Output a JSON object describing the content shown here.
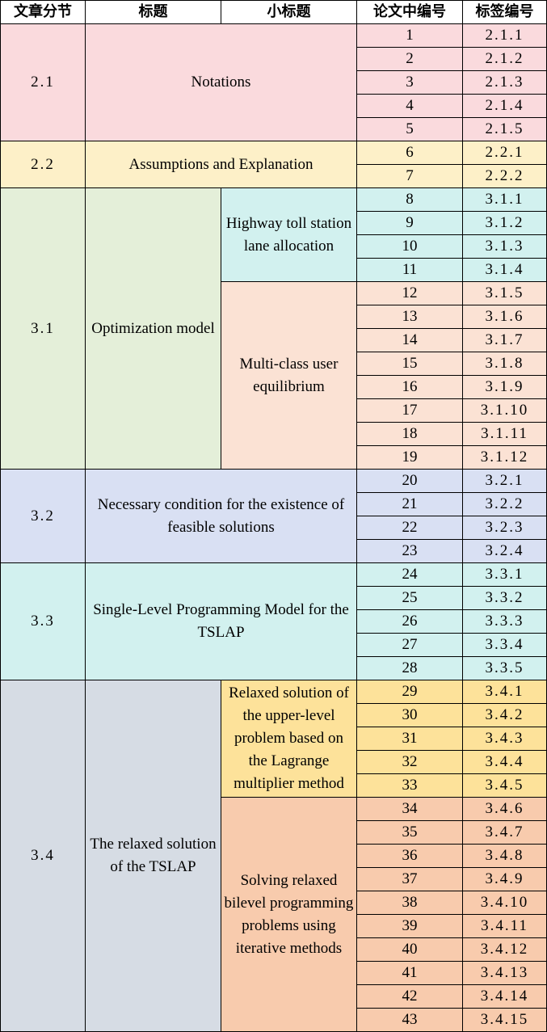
{
  "headers": [
    "文章分节",
    "标题",
    "小标题",
    "论文中编号",
    "标签编号"
  ],
  "sections": [
    {
      "section": "2.1",
      "title": "Notations",
      "color": "#fadadd",
      "subs": [
        {
          "subtitle": null,
          "color": "#fadadd",
          "rows": [
            [
              "1",
              "2.1.1"
            ],
            [
              "2",
              "2.1.2"
            ],
            [
              "3",
              "2.1.3"
            ],
            [
              "4",
              "2.1.4"
            ],
            [
              "5",
              "2.1.5"
            ]
          ]
        }
      ]
    },
    {
      "section": "2.2",
      "title": "Assumptions and Explanation",
      "color": "#fdf0c8",
      "subs": [
        {
          "subtitle": null,
          "color": "#fdf0c8",
          "rows": [
            [
              "6",
              "2.2.1"
            ],
            [
              "7",
              "2.2.2"
            ]
          ]
        }
      ]
    },
    {
      "section": "3.1",
      "title": "Optimization model",
      "color": "#e4efd9",
      "subs": [
        {
          "subtitle": "Highway toll station lane allocation",
          "color": "#d2f1ef",
          "rows": [
            [
              "8",
              "3.1.1"
            ],
            [
              "9",
              "3.1.2"
            ],
            [
              "10",
              "3.1.3"
            ],
            [
              "11",
              "3.1.4"
            ]
          ]
        },
        {
          "subtitle": "Multi-class user equilibrium",
          "color": "#fbe2d4",
          "rows": [
            [
              "12",
              "3.1.5"
            ],
            [
              "13",
              "3.1.6"
            ],
            [
              "14",
              "3.1.7"
            ],
            [
              "15",
              "3.1.8"
            ],
            [
              "16",
              "3.1.9"
            ],
            [
              "17",
              "3.1.10"
            ],
            [
              "18",
              "3.1.11"
            ],
            [
              "19",
              "3.1.12"
            ]
          ]
        }
      ]
    },
    {
      "section": "3.2",
      "title": "Necessary condition for the existence of feasible solutions",
      "color": "#d9e0f3",
      "subs": [
        {
          "subtitle": null,
          "color": "#d9e0f3",
          "rows": [
            [
              "20",
              "3.2.1"
            ],
            [
              "21",
              "3.2.2"
            ],
            [
              "22",
              "3.2.3"
            ],
            [
              "23",
              "3.2.4"
            ]
          ]
        }
      ]
    },
    {
      "section": "3.3",
      "title": "Single-Level Programming Model for the TSLAP",
      "color": "#d2f1ef",
      "subs": [
        {
          "subtitle": null,
          "color": "#d2f1ef",
          "rows": [
            [
              "24",
              "3.3.1"
            ],
            [
              "25",
              "3.3.2"
            ],
            [
              "26",
              "3.3.3"
            ],
            [
              "27",
              "3.3.4"
            ],
            [
              "28",
              "3.3.5"
            ]
          ]
        }
      ]
    },
    {
      "section": "3.4",
      "title": "The relaxed solution of the TSLAP",
      "color": "#d6dce4",
      "subs": [
        {
          "subtitle": "Relaxed solution of the upper-level problem based on the Lagrange multiplier method",
          "color": "#fde29a",
          "rows": [
            [
              "29",
              "3.4.1"
            ],
            [
              "30",
              "3.4.2"
            ],
            [
              "31",
              "3.4.3"
            ],
            [
              "32",
              "3.4.4"
            ],
            [
              "33",
              "3.4.5"
            ]
          ]
        },
        {
          "subtitle": "Solving relaxed bilevel programming problems using iterative methods",
          "color": "#f8cbad",
          "rows": [
            [
              "34",
              "3.4.6"
            ],
            [
              "35",
              "3.4.7"
            ],
            [
              "36",
              "3.4.8"
            ],
            [
              "37",
              "3.4.9"
            ],
            [
              "38",
              "3.4.10"
            ],
            [
              "39",
              "3.4.11"
            ],
            [
              "40",
              "3.4.12"
            ],
            [
              "41",
              "3.4.13"
            ],
            [
              "42",
              "3.4.14"
            ],
            [
              "43",
              "3.4.15"
            ]
          ]
        }
      ]
    }
  ]
}
